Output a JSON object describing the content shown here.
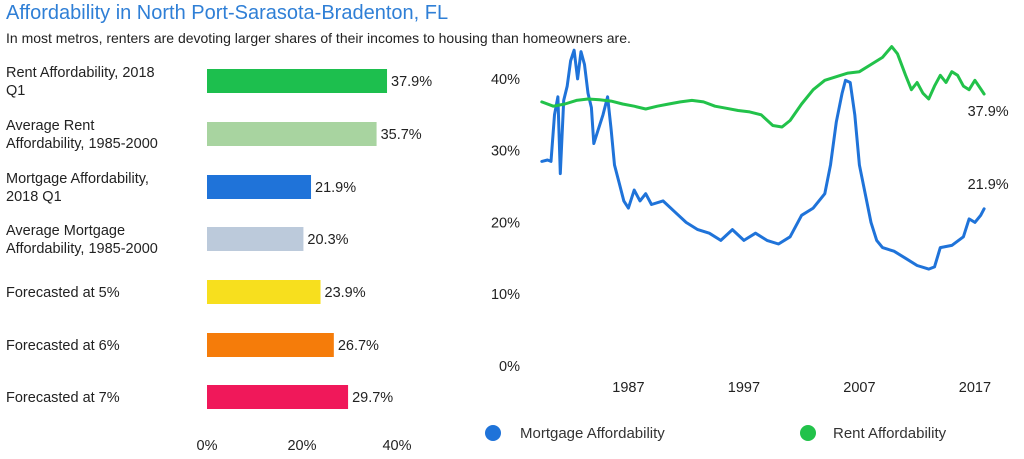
{
  "header": {
    "title": "Affordability in North Port-Sarasota-Bradenton, FL",
    "subtitle": "In most metros, renters are devoting larger shares of their incomes to housing than homeowners are."
  },
  "chart_data": [
    {
      "type": "bar",
      "orientation": "horizontal",
      "categories": [
        [
          "Rent Affordability, 2018",
          "Q1"
        ],
        [
          "Average Rent",
          "Affordability, 1985-2000"
        ],
        [
          "Mortgage Affordability,",
          "2018 Q1"
        ],
        [
          "Average Mortgage",
          "Affordability, 1985-2000"
        ],
        [
          "Forecasted at 5%"
        ],
        [
          "Forecasted at 6%"
        ],
        [
          "Forecasted at 7%"
        ]
      ],
      "values": [
        37.9,
        35.7,
        21.9,
        20.3,
        23.9,
        26.7,
        29.7
      ],
      "value_labels": [
        "37.9%",
        "35.7%",
        "21.9%",
        "20.3%",
        "23.9%",
        "26.7%",
        "29.7%"
      ],
      "colors": [
        "#1dbf4e",
        "#a8d4a0",
        "#1f73d9",
        "#bccadb",
        "#f7df1e",
        "#f57c0a",
        "#f0185a"
      ],
      "xlim": [
        0,
        40
      ],
      "xticks": [
        0,
        20,
        40
      ],
      "xtick_labels": [
        "0%",
        "20%",
        "40%"
      ]
    },
    {
      "type": "line",
      "ylim": [
        0,
        45
      ],
      "yticks": [
        0,
        10,
        20,
        30,
        40
      ],
      "ytick_labels": [
        "0%",
        "10%",
        "20%",
        "30%",
        "40%"
      ],
      "xlim": [
        1979,
        2019
      ],
      "xticks": [
        1987,
        1997,
        2007,
        2017
      ],
      "xtick_labels": [
        "1987",
        "1997",
        "2007",
        "2017"
      ],
      "legend_position": "bottom",
      "series": [
        {
          "name": "Mortgage Affordability",
          "color": "#1f73d9",
          "end_label": "21.9%",
          "points": [
            [
              1979.5,
              28.5
            ],
            [
              1980,
              28.7
            ],
            [
              1980.3,
              28.5
            ],
            [
              1980.6,
              35
            ],
            [
              1980.9,
              37.5
            ],
            [
              1981.1,
              26.8
            ],
            [
              1981.4,
              37
            ],
            [
              1981.7,
              39
            ],
            [
              1982,
              42.5
            ],
            [
              1982.3,
              44
            ],
            [
              1982.6,
              40
            ],
            [
              1982.9,
              43.8
            ],
            [
              1983.2,
              42
            ],
            [
              1983.5,
              38
            ],
            [
              1983.8,
              36
            ],
            [
              1984,
              31
            ],
            [
              1984.4,
              33
            ],
            [
              1984.8,
              35
            ],
            [
              1985.2,
              37.5
            ],
            [
              1985.5,
              33
            ],
            [
              1985.8,
              28
            ],
            [
              1986.2,
              25.5
            ],
            [
              1986.6,
              23
            ],
            [
              1987,
              22
            ],
            [
              1987.5,
              24.5
            ],
            [
              1988,
              23
            ],
            [
              1988.5,
              24
            ],
            [
              1989,
              22.5
            ],
            [
              1990,
              23
            ],
            [
              1991,
              21.5
            ],
            [
              1992,
              20
            ],
            [
              1993,
              19
            ],
            [
              1994,
              18.5
            ],
            [
              1995,
              17.5
            ],
            [
              1996,
              19
            ],
            [
              1997,
              17.5
            ],
            [
              1998,
              18.5
            ],
            [
              1999,
              17.5
            ],
            [
              2000,
              17
            ],
            [
              2001,
              18
            ],
            [
              2002,
              21
            ],
            [
              2003,
              22
            ],
            [
              2004,
              24
            ],
            [
              2004.5,
              28
            ],
            [
              2005,
              34
            ],
            [
              2005.5,
              38
            ],
            [
              2005.8,
              39.8
            ],
            [
              2006.2,
              39.5
            ],
            [
              2006.6,
              35
            ],
            [
              2007,
              28
            ],
            [
              2007.5,
              24
            ],
            [
              2008,
              20
            ],
            [
              2008.5,
              17.5
            ],
            [
              2009,
              16.5
            ],
            [
              2010,
              16
            ],
            [
              2011,
              15
            ],
            [
              2012,
              14
            ],
            [
              2013,
              13.5
            ],
            [
              2013.5,
              13.8
            ],
            [
              2014,
              16.5
            ],
            [
              2015,
              16.8
            ],
            [
              2016,
              18
            ],
            [
              2016.5,
              20.5
            ],
            [
              2017,
              20
            ],
            [
              2017.5,
              21
            ],
            [
              2017.8,
              21.9
            ]
          ]
        },
        {
          "name": "Rent Affordability",
          "color": "#22c24a",
          "end_label": "37.9%",
          "points": [
            [
              1979.5,
              36.8
            ],
            [
              1980.5,
              36.2
            ],
            [
              1981.5,
              36.5
            ],
            [
              1982.5,
              37
            ],
            [
              1983.5,
              37.2
            ],
            [
              1984.5,
              37.1
            ],
            [
              1985.5,
              36.9
            ],
            [
              1986.5,
              36.5
            ],
            [
              1987.5,
              36.2
            ],
            [
              1988.5,
              35.8
            ],
            [
              1989.5,
              36.2
            ],
            [
              1990.5,
              36.5
            ],
            [
              1991.5,
              36.8
            ],
            [
              1992.5,
              37
            ],
            [
              1993.5,
              36.8
            ],
            [
              1994.5,
              36.2
            ],
            [
              1995.5,
              35.9
            ],
            [
              1996.5,
              35.6
            ],
            [
              1997.5,
              35.4
            ],
            [
              1998.5,
              35
            ],
            [
              1999.5,
              33.5
            ],
            [
              2000.3,
              33.3
            ],
            [
              2001,
              34.2
            ],
            [
              2002,
              36.5
            ],
            [
              2003,
              38.5
            ],
            [
              2004,
              39.8
            ],
            [
              2005,
              40.3
            ],
            [
              2006,
              40.8
            ],
            [
              2007,
              41
            ],
            [
              2008,
              42
            ],
            [
              2009,
              43
            ],
            [
              2009.8,
              44.5
            ],
            [
              2010.3,
              43.5
            ],
            [
              2011,
              40.5
            ],
            [
              2011.5,
              38.5
            ],
            [
              2012,
              39.5
            ],
            [
              2012.5,
              38
            ],
            [
              2013,
              37.2
            ],
            [
              2013.5,
              39
            ],
            [
              2014,
              40.5
            ],
            [
              2014.5,
              39.5
            ],
            [
              2015,
              41
            ],
            [
              2015.5,
              40.5
            ],
            [
              2016,
              39
            ],
            [
              2016.5,
              38.5
            ],
            [
              2017,
              39.8
            ],
            [
              2017.5,
              38.6
            ],
            [
              2017.8,
              37.9
            ]
          ]
        }
      ]
    }
  ]
}
